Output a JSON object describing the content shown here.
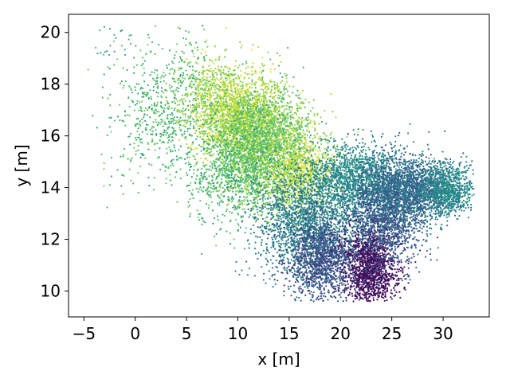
{
  "chart_data": {
    "type": "scatter",
    "xlabel": "x [m]",
    "ylabel": "y [m]",
    "xlim": [
      -6.5,
      34.5
    ],
    "ylim": [
      9.0,
      20.7
    ],
    "xticks": [
      -5,
      0,
      5,
      10,
      15,
      20,
      25,
      30
    ],
    "yticks": [
      10,
      12,
      14,
      16,
      18,
      20
    ],
    "xtick_labels": [
      "−5",
      "0",
      "5",
      "10",
      "15",
      "20",
      "25",
      "30"
    ],
    "ytick_labels": [
      "10",
      "12",
      "14",
      "16",
      "18",
      "20"
    ],
    "grid": false,
    "colormap": "viridis",
    "colors": [
      "#440154",
      "#3b528b",
      "#21918c",
      "#5ec962",
      "#fde725"
    ],
    "clusters": [
      {
        "cx": -2.5,
        "cy": 19.6,
        "sx": 1.6,
        "sy": 0.6,
        "n": 25,
        "c": [
          0.55,
          0.7
        ]
      },
      {
        "cx": 3.0,
        "cy": 17.0,
        "sx": 2.6,
        "sy": 1.4,
        "n": 700,
        "c": [
          0.55,
          0.8
        ]
      },
      {
        "cx": 7.5,
        "cy": 17.6,
        "sx": 1.6,
        "sy": 0.8,
        "n": 500,
        "c": [
          0.75,
          0.95
        ]
      },
      {
        "cx": 10.5,
        "cy": 16.6,
        "sx": 2.0,
        "sy": 0.9,
        "n": 1600,
        "c": [
          0.8,
          1.0
        ]
      },
      {
        "cx": 12.5,
        "cy": 15.6,
        "sx": 2.4,
        "sy": 1.1,
        "n": 2600,
        "c": [
          0.6,
          0.9
        ]
      },
      {
        "cx": 16.0,
        "cy": 14.6,
        "sx": 1.8,
        "sy": 0.8,
        "n": 900,
        "c": [
          0.8,
          1.0
        ]
      },
      {
        "cx": 9.0,
        "cy": 14.6,
        "sx": 2.0,
        "sy": 1.0,
        "n": 600,
        "c": [
          0.55,
          0.8
        ]
      },
      {
        "cx": 16.5,
        "cy": 12.6,
        "sx": 2.4,
        "sy": 1.0,
        "n": 1700,
        "c": [
          0.35,
          0.5
        ]
      },
      {
        "cx": 21.5,
        "cy": 14.3,
        "sx": 2.5,
        "sy": 0.7,
        "n": 1500,
        "c": [
          0.4,
          0.55
        ]
      },
      {
        "cx": 18.5,
        "cy": 11.2,
        "sx": 1.8,
        "sy": 0.8,
        "n": 1300,
        "c": [
          0.15,
          0.35
        ]
      },
      {
        "cx": 23.0,
        "cy": 10.9,
        "sx": 1.3,
        "sy": 0.8,
        "n": 1500,
        "c": [
          0.0,
          0.1
        ]
      },
      {
        "cx": 24.5,
        "cy": 13.0,
        "sx": 1.8,
        "sy": 1.0,
        "n": 1500,
        "c": [
          0.2,
          0.4
        ]
      },
      {
        "cx": 27.5,
        "cy": 13.9,
        "sx": 2.0,
        "sy": 0.6,
        "n": 1500,
        "c": [
          0.25,
          0.45
        ]
      },
      {
        "cx": 30.5,
        "cy": 13.9,
        "sx": 1.2,
        "sy": 0.5,
        "n": 700,
        "c": [
          0.4,
          0.55
        ]
      }
    ]
  }
}
